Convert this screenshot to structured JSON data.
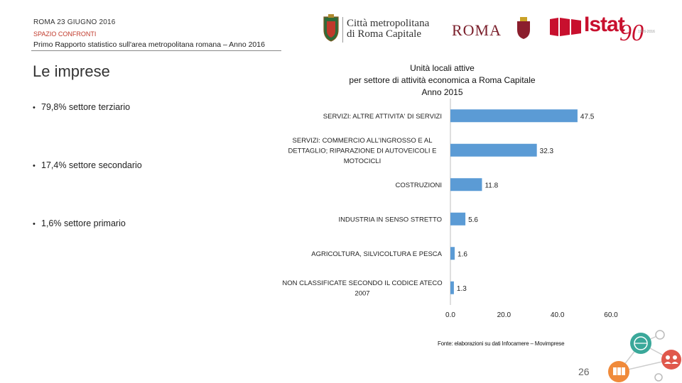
{
  "header": {
    "date": "ROMA 23 GIUGNO 2016",
    "section": "SPAZIO CONFRONTI",
    "report": "Primo Rapporto statistico sull'area metropolitana romana – Anno 2016"
  },
  "logos": {
    "metro_line1": "Città metropolitana",
    "metro_line2": "di Roma Capitale",
    "roma": "ROMA",
    "istat": "Istat",
    "istat_anniv": "90",
    "istat_years": "1926-2016"
  },
  "slide": {
    "title": "Le imprese",
    "bullets": [
      "79,8% settore terziario",
      "17,4% settore secondario",
      "1,6% settore primario"
    ]
  },
  "chart_data": {
    "type": "bar",
    "orientation": "horizontal",
    "title": "Unità locali attive per settore di attività economica a Roma Capitale Anno 2015",
    "title_lines": [
      "Unità locali attive",
      "per settore di attività economica a Roma Capitale",
      "Anno 2015"
    ],
    "categories": [
      "SERVIZI: ALTRE ATTIVITA' DI SERVIZI",
      "SERVIZI: COMMERCIO ALL'INGROSSO E AL DETTAGLIO; RIPARAZIONE DI AUTOVEICOLI E MOTOCICLI",
      "COSTRUZIONI",
      "INDUSTRIA IN SENSO STRETTO",
      "AGRICOLTURA, SILVICOLTURA E PESCA",
      "NON CLASSIFICATE SECONDO IL CODICE ATECO 2007"
    ],
    "category_lines": [
      [
        "SERVIZI: ALTRE ATTIVITA' DI SERVIZI"
      ],
      [
        "SERVIZI: COMMERCIO ALL'INGROSSO E AL",
        "DETTAGLIO; RIPARAZIONE DI AUTOVEICOLI E",
        "MOTOCICLI"
      ],
      [
        "COSTRUZIONI"
      ],
      [
        "INDUSTRIA IN SENSO STRETTO"
      ],
      [
        "AGRICOLTURA, SILVICOLTURA E PESCA"
      ],
      [
        "NON CLASSIFICATE SECONDO IL CODICE ATECO",
        "2007"
      ]
    ],
    "values": [
      47.5,
      32.3,
      11.8,
      5.6,
      1.6,
      1.3
    ],
    "value_labels": [
      "47.5",
      "32.3",
      "11.8",
      "5.6",
      "1.6",
      "1.3"
    ],
    "xlim": [
      0,
      60
    ],
    "xticks": [
      "0.0",
      "20.0",
      "40.0",
      "60.0"
    ],
    "xtick_values": [
      0,
      20,
      40,
      60
    ],
    "xlabel": "",
    "ylabel": "",
    "grid": false,
    "bar_color": "#5b9bd5"
  },
  "footer": {
    "source": "Fonte: elaborazioni su dati Infocamere – Movimprese",
    "page": "26"
  }
}
